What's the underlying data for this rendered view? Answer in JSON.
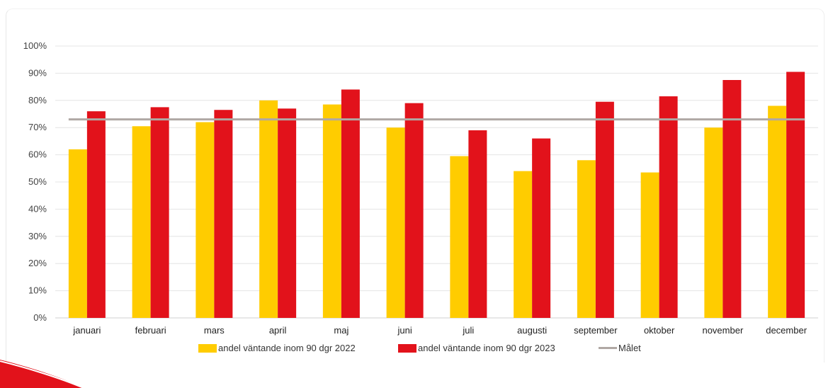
{
  "chart_data": {
    "type": "bar",
    "categories": [
      "januari",
      "februari",
      "mars",
      "april",
      "maj",
      "juni",
      "juli",
      "augusti",
      "september",
      "oktober",
      "november",
      "december"
    ],
    "series": [
      {
        "name": "andel väntande inom 90 dgr 2022",
        "color": "#FFCC00",
        "values": [
          62,
          70.5,
          72,
          80,
          78.5,
          70,
          59.5,
          54,
          58,
          53.5,
          70,
          78
        ]
      },
      {
        "name": "andel väntande inom 90 dgr 2023",
        "color": "#E2121B",
        "values": [
          76,
          77.5,
          76.5,
          77,
          84,
          79,
          69,
          66,
          79.5,
          81.5,
          87.5,
          90.5
        ]
      }
    ],
    "target_line": {
      "name": "Målet",
      "value": 73,
      "color": "#B0A8A4"
    },
    "ylim": [
      0,
      100
    ],
    "ytick_labels": [
      "0%",
      "10%",
      "20%",
      "30%",
      "40%",
      "50%",
      "60%",
      "70%",
      "80%",
      "90%",
      "100%"
    ],
    "grid": true,
    "legend_position": "bottom"
  }
}
